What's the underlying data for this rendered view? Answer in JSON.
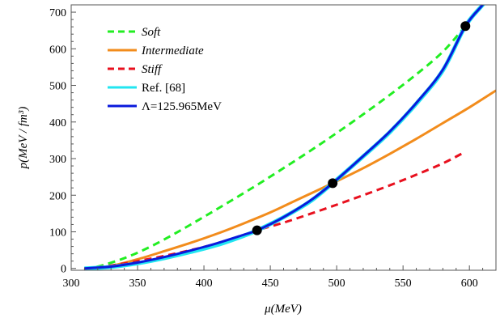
{
  "chart_data": {
    "type": "line",
    "title": "",
    "xlabel": "μ(MeV)",
    "ylabel": "p(MeV / fm³)",
    "xlim": [
      300,
      620
    ],
    "ylim": [
      -5,
      720
    ],
    "x_ticks": [
      300,
      350,
      400,
      450,
      500,
      550,
      600
    ],
    "y_ticks": [
      0,
      100,
      200,
      300,
      400,
      500,
      600,
      700
    ],
    "grid": false,
    "legend_position": "top-left",
    "series": [
      {
        "name": "Soft",
        "style": "dashed",
        "color": "#22ee22",
        "x": [
          310,
          320,
          340,
          360,
          380,
          400,
          420,
          440,
          460,
          480,
          500,
          520,
          540,
          560,
          580,
          597
        ],
        "y": [
          0,
          5,
          28,
          60,
          99,
          141,
          184,
          228,
          274,
          321,
          370,
          421,
          474,
          530,
          592,
          662
        ]
      },
      {
        "name": "Intermediate",
        "style": "solid",
        "color": "#f28c1c",
        "x": [
          310,
          330,
          350,
          370,
          390,
          410,
          430,
          450,
          470,
          497,
          520,
          540,
          560,
          580,
          600,
          620
        ],
        "y": [
          0,
          7,
          25,
          47,
          70,
          95,
          123,
          153,
          187,
          233,
          274,
          313,
          354,
          397,
          440,
          486
        ]
      },
      {
        "name": "Stiff",
        "style": "dashed",
        "color": "#e8101e",
        "x": [
          310,
          330,
          350,
          370,
          390,
          410,
          425,
          440,
          460,
          480,
          500,
          520,
          540,
          560,
          580,
          595
        ],
        "y": [
          0,
          8,
          20,
          34,
          50,
          68,
          85,
          104,
          125,
          149,
          174,
          200,
          227,
          256,
          287,
          315
        ]
      },
      {
        "name": "Ref. [68]",
        "style": "solid",
        "color": "#22e6f0",
        "x": [
          310,
          330,
          350,
          370,
          390,
          410,
          430,
          440,
          460,
          480,
          497,
          520,
          540,
          560,
          580,
          597,
          610,
          615
        ],
        "y": [
          0,
          4,
          14,
          28,
          45,
          64,
          89,
          104,
          140,
          183,
          233,
          306,
          372,
          450,
          541,
          662,
          720,
          745
        ]
      },
      {
        "name": "Λ=125.965MeV",
        "style": "solid",
        "color": "#0a1adc",
        "x": [
          310,
          330,
          350,
          370,
          390,
          410,
          430,
          440,
          460,
          480,
          497,
          520,
          540,
          560,
          580,
          597,
          610,
          615
        ],
        "y": [
          0,
          5,
          16,
          31,
          49,
          69,
          92,
          104,
          140,
          185,
          233,
          307,
          374,
          452,
          543,
          662,
          720,
          745
        ]
      }
    ],
    "markers": {
      "color": "#000000",
      "points": [
        {
          "x": 440,
          "y": 104
        },
        {
          "x": 497,
          "y": 233
        },
        {
          "x": 597,
          "y": 662
        }
      ]
    }
  }
}
